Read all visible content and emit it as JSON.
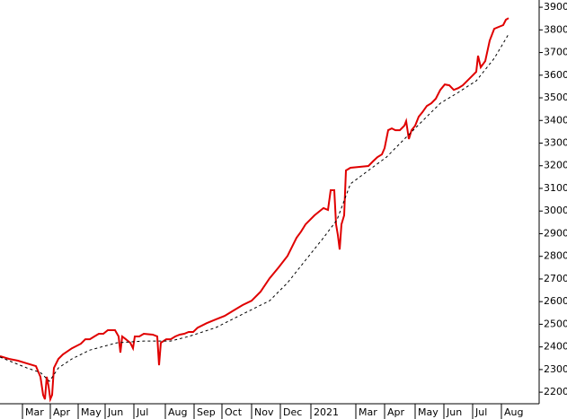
{
  "chart_data": {
    "type": "line",
    "xlim": [
      0,
      600
    ],
    "xticks": [
      {
        "value": 25,
        "label": "Mar"
      },
      {
        "value": 56,
        "label": "Apr"
      },
      {
        "value": 87,
        "label": "May"
      },
      {
        "value": 117,
        "label": "Jun"
      },
      {
        "value": 149,
        "label": "Jul"
      },
      {
        "value": 184,
        "label": "Aug"
      },
      {
        "value": 216,
        "label": "Sep"
      },
      {
        "value": 247,
        "label": "Oct"
      },
      {
        "value": 280,
        "label": "Nov"
      },
      {
        "value": 312,
        "label": "Dec"
      },
      {
        "value": 346,
        "label": "2021"
      },
      {
        "value": 396,
        "label": "Mar"
      },
      {
        "value": 428,
        "label": "Apr"
      },
      {
        "value": 462,
        "label": "May"
      },
      {
        "value": 494,
        "label": "Jun"
      },
      {
        "value": 526,
        "label": "Jul"
      },
      {
        "value": 558,
        "label": "Aug"
      }
    ],
    "ylim": [
      2149,
      3932
    ],
    "yticks": [
      2200,
      2300,
      2400,
      2500,
      2600,
      2700,
      2800,
      2900,
      3000,
      3100,
      3200,
      3300,
      3400,
      3500,
      3600,
      3700,
      3800,
      3900
    ],
    "series": [
      {
        "style": "solid",
        "color": "#e00000",
        "x": [
          0,
          10,
          20,
          30,
          40,
          45,
          48,
          50,
          52,
          54,
          56,
          58,
          60,
          65,
          70,
          80,
          90,
          95,
          100,
          105,
          110,
          115,
          120,
          128,
          132,
          134,
          136,
          140,
          145,
          148,
          150,
          155,
          160,
          170,
          175,
          177,
          179,
          185,
          190,
          195,
          200,
          205,
          210,
          215,
          220,
          230,
          240,
          250,
          260,
          270,
          280,
          290,
          300,
          310,
          320,
          325,
          330,
          335,
          340,
          350,
          360,
          365,
          368,
          372,
          374,
          376,
          378,
          380,
          383,
          385,
          390,
          400,
          410,
          415,
          420,
          425,
          428,
          432,
          436,
          440,
          445,
          450,
          452,
          455,
          458,
          462,
          466,
          470,
          475,
          480,
          485,
          490,
          495,
          500,
          505,
          510,
          515,
          520,
          525,
          530,
          532,
          535,
          540,
          545,
          550,
          555,
          560,
          563,
          566
        ],
        "values": [
          2359,
          2347,
          2339,
          2327,
          2315,
          2268,
          2188,
          2169,
          2268,
          2228,
          2169,
          2188,
          2307,
          2347,
          2367,
          2394,
          2414,
          2434,
          2434,
          2446,
          2458,
          2458,
          2474,
          2474,
          2446,
          2375,
          2446,
          2434,
          2418,
          2394,
          2446,
          2446,
          2458,
          2454,
          2446,
          2319,
          2418,
          2434,
          2434,
          2446,
          2454,
          2458,
          2466,
          2466,
          2485,
          2505,
          2521,
          2537,
          2561,
          2585,
          2604,
          2644,
          2703,
          2751,
          2802,
          2842,
          2882,
          2909,
          2941,
          2981,
          3013,
          3005,
          3092,
          3092,
          2941,
          2894,
          2830,
          2941,
          2981,
          3179,
          3191,
          3195,
          3199,
          3219,
          3238,
          3250,
          3278,
          3357,
          3365,
          3357,
          3357,
          3377,
          3397,
          3318,
          3357,
          3377,
          3417,
          3436,
          3464,
          3476,
          3496,
          3535,
          3559,
          3555,
          3535,
          3543,
          3555,
          3575,
          3595,
          3615,
          3686,
          3635,
          3662,
          3753,
          3805,
          3813,
          3821,
          3845,
          3852
        ]
      },
      {
        "style": "dashed",
        "color": "#000000",
        "x": [
          0,
          30,
          45,
          55,
          65,
          80,
          100,
          130,
          160,
          190,
          210,
          240,
          270,
          300,
          320,
          340,
          360,
          375,
          390,
          410,
          430,
          450,
          470,
          490,
          510,
          530,
          550,
          566
        ],
        "values": [
          2355,
          2307,
          2287,
          2248,
          2307,
          2347,
          2386,
          2418,
          2426,
          2426,
          2446,
          2485,
          2545,
          2604,
          2683,
          2783,
          2882,
          2961,
          3120,
          3179,
          3238,
          3318,
          3397,
          3476,
          3524,
          3575,
          3674,
          3781
        ]
      }
    ]
  }
}
